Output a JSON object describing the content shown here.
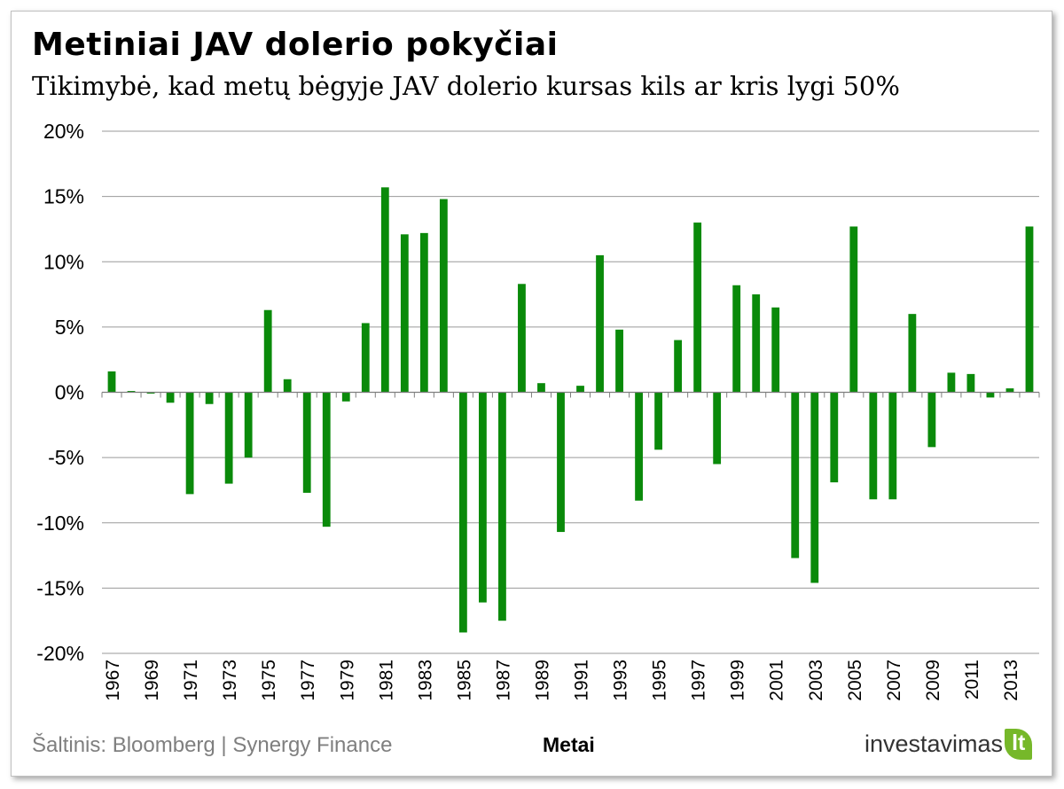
{
  "chart_data": {
    "type": "bar",
    "title": "Metiniai JAV dolerio pokyčiai",
    "subtitle": "Tikimybė, kad metų bėgyje JAV dolerio kursas kils ar kris lygi 50%",
    "xlabel": "Metai",
    "ylabel": "",
    "ylim": [
      -20,
      20
    ],
    "yticks": [
      "20%",
      "15%",
      "10%",
      "5%",
      "0%",
      "-5%",
      "-10%",
      "-15%",
      "-20%"
    ],
    "ytick_values": [
      20,
      15,
      10,
      5,
      0,
      -5,
      -10,
      -15,
      -20
    ],
    "xtick_labels": [
      "1967",
      "1969",
      "1971",
      "1973",
      "1975",
      "1977",
      "1979",
      "1981",
      "1983",
      "1985",
      "1987",
      "1989",
      "1991",
      "1993",
      "1995",
      "1997",
      "1999",
      "2001",
      "2003",
      "2005",
      "2007",
      "2009",
      "2011",
      "2013"
    ],
    "categories": [
      1967,
      1968,
      1969,
      1970,
      1971,
      1972,
      1973,
      1974,
      1975,
      1976,
      1977,
      1978,
      1979,
      1980,
      1981,
      1982,
      1983,
      1984,
      1985,
      1986,
      1987,
      1988,
      1989,
      1990,
      1991,
      1992,
      1993,
      1994,
      1995,
      1996,
      1997,
      1998,
      1999,
      2000,
      2001,
      2002,
      2003,
      2004,
      2005,
      2006,
      2007,
      2008,
      2009,
      2010,
      2011,
      2012,
      2013,
      2014
    ],
    "values": [
      1.6,
      0.1,
      -0.1,
      -0.8,
      -7.8,
      -0.9,
      -7.0,
      -5.0,
      6.3,
      1.0,
      -7.7,
      -10.3,
      -0.7,
      5.3,
      15.7,
      12.1,
      12.2,
      14.8,
      -18.4,
      -16.1,
      -17.5,
      8.3,
      0.7,
      -10.7,
      0.5,
      10.5,
      4.8,
      -8.3,
      -4.4,
      4.0,
      13.0,
      -5.5,
      8.2,
      7.5,
      6.5,
      -12.7,
      -14.6,
      -6.9,
      12.7,
      -8.2,
      -8.2,
      6.0,
      -4.2,
      1.5,
      1.4,
      -0.4,
      0.3,
      12.7
    ],
    "bar_color": "#0a8a0a",
    "grid": true,
    "legend": "none"
  },
  "footer": {
    "source": "Šaltinis: Bloomberg | Synergy Finance"
  },
  "logo": {
    "word": "investavimas",
    "suffix": "lt"
  }
}
